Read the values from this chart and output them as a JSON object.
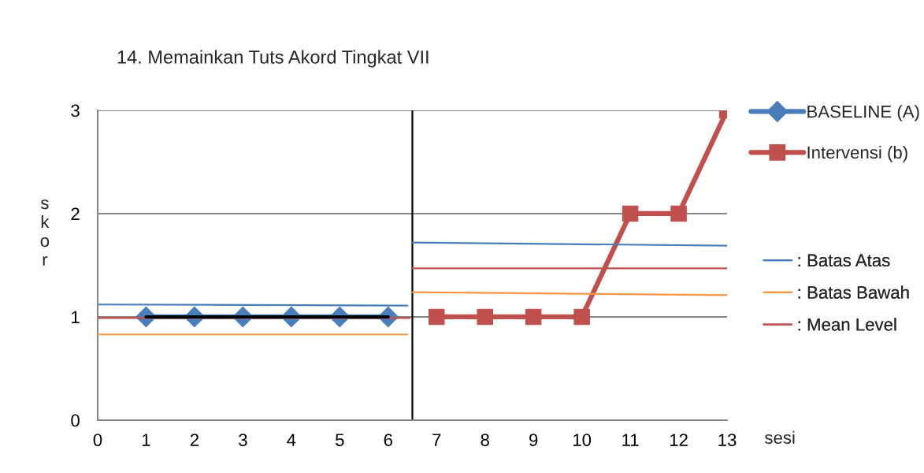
{
  "chart_data": {
    "type": "line",
    "title": "14. Memainkan Tuts Akord Tingkat VII",
    "xlabel": "sesi",
    "ylabel": "skor",
    "xlim": [
      0,
      13
    ],
    "xticks": [
      0,
      1,
      2,
      3,
      4,
      5,
      6,
      7,
      8,
      9,
      10,
      11,
      12,
      13
    ],
    "ylim": [
      0,
      3
    ],
    "yticks": [
      0,
      1,
      2,
      3
    ],
    "grid": "y",
    "legend": "right",
    "series": [
      {
        "name": "BASELINE (A)",
        "color": "#4a7ebb",
        "marker": "diamond",
        "x": [
          1,
          2,
          3,
          4,
          5,
          6
        ],
        "values": [
          1,
          1,
          1,
          1,
          1,
          1
        ]
      },
      {
        "name": "Intervensi (b)",
        "color": "#c0504d",
        "marker": "square",
        "x": [
          7,
          8,
          9,
          10,
          11,
          12,
          13
        ],
        "values": [
          1,
          1,
          1,
          1,
          2,
          2,
          3
        ]
      },
      {
        "name": ": Batas Atas",
        "color": "#4a7ebb",
        "x": [
          0,
          6.4,
          6.45,
          6.5,
          13
        ],
        "values": [
          1.12,
          1.11,
          null,
          1.72,
          1.69
        ]
      },
      {
        "name": ": Batas Bawah",
        "color": "#f79646",
        "x": [
          0,
          6.4,
          6.45,
          6.5,
          13
        ],
        "values": [
          0.83,
          0.83,
          null,
          1.24,
          1.21
        ]
      },
      {
        "name": ": Mean Level",
        "color": "#c0504d",
        "x": [
          0,
          6.45,
          6.47,
          6.5,
          13
        ],
        "values": [
          0.99,
          0.99,
          null,
          1.47,
          1.47
        ]
      },
      {
        "type": "line",
        "color": "#000000",
        "x": [
          1,
          6
        ],
        "values": [
          1,
          1
        ]
      }
    ],
    "ref_lines": [
      {
        "axis": "x",
        "value": 6.5,
        "color": "#000000"
      }
    ]
  }
}
